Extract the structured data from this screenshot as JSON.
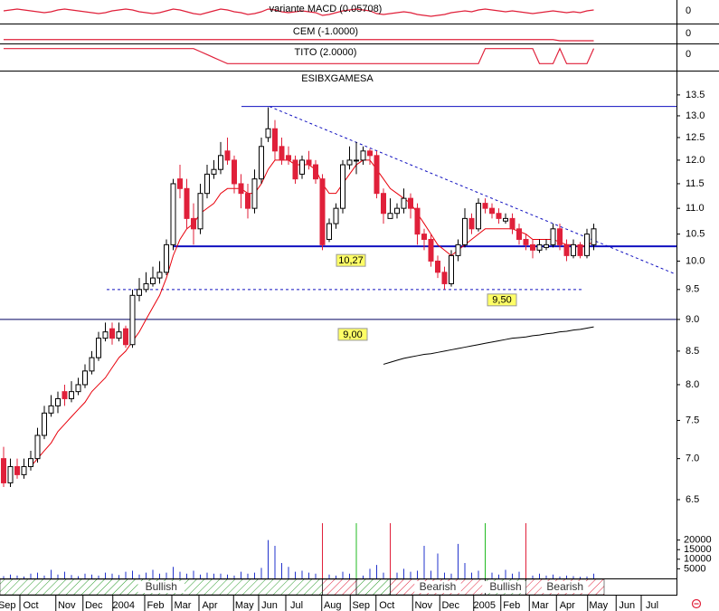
{
  "chart_data": {
    "type": "candlestick",
    "title": "ESIBXGAMESA",
    "log_scale": true,
    "ylim": [
      6.26,
      14.06
    ],
    "yticks": [
      {
        "value": 6.5,
        "label": "6.5"
      },
      {
        "value": 7,
        "label": "7.0"
      },
      {
        "value": 7.5,
        "label": "7.5"
      },
      {
        "value": 8,
        "label": "8.0"
      },
      {
        "value": 8.5,
        "label": "8.5"
      },
      {
        "value": 9,
        "label": "9.0"
      },
      {
        "value": 9.5,
        "label": "9.5"
      },
      {
        "value": 10,
        "label": "10.0"
      },
      {
        "value": 10.5,
        "label": "10.5"
      },
      {
        "value": 11,
        "label": "11.0"
      },
      {
        "value": 11.5,
        "label": "11.5"
      },
      {
        "value": 12,
        "label": "12.0"
      },
      {
        "value": 12.5,
        "label": "12.5"
      },
      {
        "value": 13,
        "label": "13.0"
      },
      {
        "value": 13.5,
        "label": "13.5"
      }
    ],
    "xlim": [
      -0.5,
      99.3
    ],
    "xticks": [
      {
        "value": 0.5,
        "label": "Sep"
      },
      {
        "value": 4,
        "label": "Oct"
      },
      {
        "value": 9.3,
        "label": "Nov"
      },
      {
        "value": 13.3,
        "label": "Dec"
      },
      {
        "value": 17.7,
        "label": "2004"
      },
      {
        "value": 22.4,
        "label": "Feb"
      },
      {
        "value": 26.4,
        "label": "Mar"
      },
      {
        "value": 30.4,
        "label": "Apr"
      },
      {
        "value": 35.5,
        "label": "May"
      },
      {
        "value": 39.2,
        "label": "Jun"
      },
      {
        "value": 43.2,
        "label": "Jul"
      },
      {
        "value": 48.5,
        "label": "Aug"
      },
      {
        "value": 52.7,
        "label": "Sep"
      },
      {
        "value": 56.5,
        "label": "Oct"
      },
      {
        "value": 61.9,
        "label": "Nov"
      },
      {
        "value": 65.9,
        "label": "Dec"
      },
      {
        "value": 70.9,
        "label": "2005"
      },
      {
        "value": 74.9,
        "label": "Feb"
      },
      {
        "value": 79.1,
        "label": "Mar"
      },
      {
        "value": 83.1,
        "label": "Apr"
      },
      {
        "value": 87.7,
        "label": "May"
      },
      {
        "value": 91.9,
        "label": "Jun"
      },
      {
        "value": 95.6,
        "label": "Jul"
      }
    ],
    "up_color": "#ffffff",
    "down_color": "#e0203a",
    "open": [
      7.0,
      6.7,
      6.9,
      6.8,
      6.9,
      7.0,
      7.3,
      7.6,
      7.7,
      7.9,
      7.8,
      7.9,
      8.0,
      8.2,
      8.4,
      8.7,
      8.85,
      8.7,
      8.85,
      8.6,
      9.4,
      9.5,
      9.6,
      9.7,
      9.8,
      10.3,
      11.6,
      11.4,
      10.8,
      10.6,
      11.3,
      11.7,
      11.8,
      12.2,
      12.0,
      11.5,
      11.3,
      11.0,
      11.6,
      12.5,
      12.7,
      12.3,
      12.1,
      12.0,
      11.7,
      12.0,
      11.9,
      11.6,
      10.4,
      10.7,
      11.0,
      11.9,
      12.0,
      12.0,
      12.2,
      12.1,
      11.3,
      10.8,
      10.9,
      11.0,
      11.2,
      11.0,
      10.5,
      10.4,
      10.0,
      9.8,
      9.6,
      10.1,
      10.3,
      10.8,
      10.6,
      11.1,
      11.0,
      10.9,
      10.75,
      10.8,
      10.6,
      10.4,
      10.3,
      10.2,
      10.25,
      10.3,
      10.6,
      10.3,
      10.1,
      10.3,
      10.1,
      10.3
    ],
    "high": [
      7.15,
      7.0,
      7.0,
      7.0,
      7.1,
      7.4,
      7.7,
      7.85,
      7.9,
      8.0,
      8.05,
      8.1,
      8.3,
      8.5,
      8.8,
      8.95,
      8.95,
      8.95,
      8.9,
      9.5,
      9.7,
      9.8,
      9.9,
      10.0,
      10.4,
      11.6,
      11.9,
      11.6,
      11.1,
      11.5,
      11.9,
      12.0,
      12.4,
      12.5,
      12.1,
      11.7,
      11.5,
      11.8,
      12.5,
      13.2,
      12.9,
      12.5,
      12.3,
      12.1,
      12.1,
      12.2,
      12.0,
      11.7,
      10.8,
      11.1,
      12.0,
      12.3,
      12.4,
      12.3,
      12.25,
      12.2,
      11.4,
      11.2,
      11.1,
      11.4,
      11.3,
      11.1,
      10.6,
      10.5,
      10.1,
      9.9,
      10.2,
      10.4,
      11.0,
      10.9,
      11.2,
      11.2,
      11.1,
      11.0,
      10.9,
      10.9,
      10.7,
      10.5,
      10.4,
      10.4,
      10.4,
      10.7,
      10.7,
      10.4,
      10.4,
      10.35,
      10.6,
      10.7
    ],
    "low": [
      6.65,
      6.65,
      6.75,
      6.75,
      6.85,
      6.95,
      7.25,
      7.55,
      7.6,
      7.7,
      7.75,
      7.85,
      7.95,
      8.15,
      8.35,
      8.65,
      8.6,
      8.65,
      8.55,
      8.55,
      9.3,
      9.45,
      9.55,
      9.6,
      9.75,
      10.2,
      11.2,
      10.6,
      10.3,
      10.5,
      11.2,
      11.6,
      11.7,
      11.9,
      11.3,
      11.0,
      10.8,
      10.9,
      11.5,
      12.4,
      12.0,
      11.9,
      11.9,
      11.5,
      11.6,
      11.8,
      11.5,
      10.2,
      10.35,
      10.6,
      10.9,
      11.8,
      11.7,
      11.9,
      11.9,
      11.2,
      10.7,
      10.8,
      10.8,
      10.9,
      10.8,
      10.3,
      10.2,
      9.9,
      9.7,
      9.5,
      9.55,
      10.0,
      10.25,
      10.5,
      10.55,
      10.9,
      10.8,
      10.7,
      10.7,
      10.5,
      10.3,
      10.2,
      10.05,
      10.15,
      10.2,
      10.25,
      10.2,
      10.0,
      10.05,
      10.05,
      10.05,
      10.2
    ],
    "close": [
      6.7,
      6.9,
      6.8,
      6.9,
      7.0,
      7.3,
      7.6,
      7.7,
      7.8,
      7.8,
      7.9,
      8.0,
      8.2,
      8.4,
      8.7,
      8.8,
      8.7,
      8.8,
      8.6,
      9.4,
      9.5,
      9.6,
      9.7,
      9.8,
      10.3,
      11.5,
      11.4,
      10.8,
      10.6,
      11.3,
      11.7,
      11.8,
      12.1,
      12.0,
      11.5,
      11.3,
      11.0,
      11.6,
      12.3,
      12.7,
      12.2,
      12.0,
      12.0,
      11.6,
      12.0,
      11.9,
      11.6,
      10.3,
      10.7,
      11.0,
      11.9,
      12.0,
      12.0,
      12.2,
      12.1,
      11.3,
      10.9,
      10.9,
      11.0,
      11.2,
      11.0,
      10.5,
      10.4,
      10.0,
      9.8,
      9.6,
      10.1,
      10.3,
      10.8,
      10.6,
      11.1,
      11.0,
      10.9,
      10.8,
      10.8,
      10.6,
      10.4,
      10.3,
      10.2,
      10.3,
      10.3,
      10.6,
      10.3,
      10.1,
      10.3,
      10.1,
      10.5,
      10.6
    ],
    "series": [
      {
        "color": "#e8000b",
        "values": [
          null,
          null,
          null,
          null,
          6.9,
          7.0,
          7.1,
          7.2,
          7.35,
          7.45,
          7.55,
          7.65,
          7.75,
          7.9,
          8.0,
          8.1,
          8.25,
          8.4,
          8.5,
          8.65,
          8.8,
          9.0,
          9.2,
          9.4,
          9.7,
          10.1,
          10.4,
          10.6,
          10.7,
          10.9,
          11.0,
          11.1,
          11.3,
          11.4,
          11.4,
          11.4,
          11.3,
          11.3,
          11.5,
          11.8,
          12.0,
          12.0,
          12.0,
          11.9,
          11.9,
          11.9,
          11.8,
          11.5,
          11.3,
          11.3,
          11.5,
          11.7,
          11.9,
          12.0,
          12.0,
          11.8,
          11.6,
          11.4,
          11.3,
          11.2,
          11.1,
          10.9,
          10.7,
          10.5,
          10.3,
          10.2,
          10.1,
          10.2,
          10.3,
          10.4,
          10.5,
          10.6,
          10.6,
          10.6,
          10.6,
          10.6,
          10.55,
          10.5,
          10.4,
          10.4,
          10.4,
          10.4,
          10.35,
          10.3,
          10.3,
          10.25,
          10.3,
          10.35
        ]
      },
      {
        "color": "#000000",
        "values": [
          null,
          null,
          null,
          null,
          null,
          null,
          null,
          null,
          null,
          null,
          null,
          null,
          null,
          null,
          null,
          null,
          null,
          null,
          null,
          null,
          null,
          null,
          null,
          null,
          null,
          null,
          null,
          null,
          null,
          null,
          null,
          null,
          null,
          null,
          null,
          null,
          null,
          null,
          null,
          null,
          null,
          null,
          null,
          null,
          null,
          null,
          null,
          null,
          null,
          null,
          null,
          null,
          null,
          null,
          null,
          null,
          8.3,
          8.33,
          8.36,
          8.39,
          8.41,
          8.43,
          8.45,
          8.46,
          8.48,
          8.5,
          8.52,
          8.54,
          8.56,
          8.58,
          8.6,
          8.62,
          8.64,
          8.66,
          8.68,
          8.7,
          8.71,
          8.72,
          8.74,
          8.75,
          8.77,
          8.78,
          8.8,
          8.81,
          8.83,
          8.84,
          8.86,
          8.88
        ]
      }
    ],
    "levels": [
      {
        "value": 13.22,
        "color": "#1010c0",
        "dashed": false
      },
      {
        "value": 10.27,
        "label": "10,27",
        "color": "#1010c0",
        "dashed": false
      },
      {
        "value": 9.5,
        "label": "9,50",
        "color": "#1010c0",
        "dashed": true
      },
      {
        "value": 9.0,
        "label": "9,00",
        "color": "#000060",
        "dashed": false
      }
    ],
    "trendline": {
      "values": [
        13.22,
        9.78
      ],
      "color": "#1010c0"
    },
    "volume": {
      "color": "#2233cc",
      "ylim": [
        0,
        28800
      ],
      "yticks": [
        20000,
        15000,
        10000,
        5000
      ],
      "values": [
        1200,
        2000,
        1500,
        1000,
        2500,
        3000,
        1500,
        4500,
        2000,
        3500,
        1800,
        1200,
        2500,
        2000,
        1500,
        3000,
        2500,
        1800,
        3500,
        4000,
        2000,
        3000,
        4500,
        2500,
        3000,
        6000,
        3500,
        2500,
        4000,
        2000,
        3000,
        2500,
        2500,
        2000,
        1500,
        3500,
        2500,
        3000,
        5500,
        20000,
        17000,
        8000,
        6000,
        3500,
        4000,
        3000,
        2500,
        3000,
        2000,
        1500,
        3500,
        2500,
        2000,
        1500,
        5000,
        7000,
        3000,
        2000,
        3000,
        5000,
        3500,
        4000,
        17000,
        4000,
        13000,
        3000,
        2500,
        18000,
        8000,
        3000,
        4000,
        2500,
        3000,
        2000,
        4500,
        2500,
        3500,
        2000,
        1500,
        2500,
        1500,
        2000,
        1000,
        1500,
        1200,
        800,
        1000,
        2500
      ]
    },
    "signals": [
      {
        "index": 47,
        "color": "#e0203a"
      },
      {
        "index": 52,
        "color": "#22bb22"
      },
      {
        "index": 57,
        "color": "#e0203a"
      },
      {
        "index": 71,
        "color": "#22bb22"
      },
      {
        "index": 77,
        "color": "#e0203a"
      }
    ],
    "trend": {
      "labels": [
        "Bullish",
        null,
        null,
        "Bearish",
        "Bullish",
        "Bearish"
      ],
      "colors": [
        "#2a9a2a",
        "#e0203a",
        "#2a9a2a",
        "#e0203a",
        "#2a9a2a",
        "#e0203a"
      ]
    },
    "indicators": [
      {
        "label": "variante MACD (0.05708)",
        "axis_label": "0",
        "color": "#e0203a",
        "ylim": [
          -1,
          1
        ],
        "values": [
          0.1,
          0.2,
          0.3,
          0.2,
          0.1,
          0.0,
          -0.1,
          0.0,
          0.2,
          0.3,
          0.2,
          0.1,
          0.0,
          -0.1,
          -0.2,
          -0.1,
          0.1,
          0.2,
          0.3,
          0.2,
          0.0,
          -0.1,
          -0.2,
          -0.1,
          0.1,
          0.3,
          0.2,
          0.0,
          -0.2,
          -0.3,
          -0.1,
          0.1,
          0.3,
          0.2,
          0.0,
          -0.1,
          -0.3,
          -0.2,
          0.0,
          0.3,
          0.2,
          0.0,
          -0.1,
          0.0,
          0.1,
          0.0,
          -0.1,
          -0.4,
          -0.3,
          -0.1,
          0.1,
          0.2,
          0.3,
          0.2,
          0.1,
          -0.2,
          -0.3,
          -0.2,
          -0.1,
          0.0,
          -0.1,
          -0.3,
          -0.4,
          -0.5,
          -0.4,
          -0.3,
          -0.1,
          0.0,
          0.1,
          0.0,
          0.2,
          0.3,
          0.2,
          0.1,
          0.0,
          0.1,
          0.0,
          -0.1,
          -0.2,
          -0.1,
          0.0,
          0.1,
          0.0,
          -0.1,
          0.0,
          -0.1,
          0.1,
          0.2
        ]
      },
      {
        "label": "CEM (-1.0000)",
        "axis_label": "0",
        "color": "#e0203a",
        "ylim": [
          -1.2,
          1.2
        ],
        "values": [
          -1,
          -1,
          -1,
          -1,
          -1,
          -1,
          -1,
          -1,
          -1,
          -1,
          -1,
          -1,
          -1,
          -1,
          -1,
          -1,
          -1,
          -1,
          -1,
          -1,
          -1,
          -1,
          -1,
          -1,
          -1,
          -1,
          -1,
          -1,
          -1,
          -1,
          -1,
          -1,
          -1,
          -1,
          -1,
          -1,
          -1,
          -1,
          -1,
          -1,
          -1,
          -1,
          -1,
          -1,
          -1,
          -1,
          -1,
          -1,
          -1,
          -1,
          -1,
          -1,
          -1,
          -1,
          -1,
          -1,
          -1,
          -1,
          -1,
          -1,
          -1,
          -1,
          -1,
          -1,
          -1,
          -1,
          -1,
          -1,
          -1,
          -1,
          -1,
          -1,
          -1,
          -1,
          -1,
          -1,
          -1,
          -1,
          -1,
          -1,
          -1,
          -1,
          -1.2,
          -1.2,
          -1.2,
          -1.2,
          -1.2,
          -1.2
        ]
      },
      {
        "label": "TITO (2.0000)",
        "axis_label": "0",
        "color": "#e0203a",
        "ylim": [
          -1.2,
          1.2
        ],
        "values": [
          1,
          1,
          1,
          1,
          1,
          1,
          1,
          1,
          1,
          1,
          1,
          1,
          1,
          1,
          1,
          1,
          1,
          1,
          1,
          1,
          1,
          1,
          1,
          1,
          1,
          1,
          1,
          1,
          1,
          0.6,
          0.2,
          -0.2,
          -0.6,
          -1,
          -1,
          -1,
          -1,
          -1,
          -1,
          -1,
          -1,
          -1,
          -1,
          -1,
          -1,
          -1,
          -1,
          -1,
          -1,
          -1,
          -1,
          -1,
          -1,
          -1,
          -1,
          -1,
          -1,
          -1,
          -1,
          -1,
          -1,
          -1,
          -1,
          -1,
          -1,
          -1,
          -1,
          -1,
          -1,
          -1,
          -1,
          1,
          1,
          1,
          1,
          1,
          1,
          1,
          1,
          -1,
          -1,
          -1,
          1,
          -1,
          -1,
          -1,
          -1,
          1
        ]
      }
    ]
  }
}
